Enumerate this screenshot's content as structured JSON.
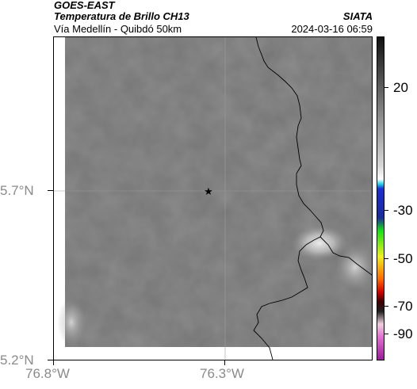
{
  "header": {
    "satellite": "GOES-EAST",
    "product": "Temperatura de Brillo CH13",
    "region": "Vía Medellín - Quibdó 50km",
    "organization": "SIATA",
    "timestamp": "2024-03-16 06:59"
  },
  "map": {
    "lat_labels": [
      "5.7°N",
      "5.2°N"
    ],
    "lon_labels": [
      "76.8°W",
      "76.3°W"
    ],
    "marker": "star",
    "gridlines": true
  },
  "colorbar": {
    "labels": [
      "20",
      "-30",
      "-50",
      "-70",
      "-90"
    ],
    "stops": [
      {
        "pos": 0.0,
        "color": "#111111"
      },
      {
        "pos": 0.4,
        "color": "#d8d8d8"
      },
      {
        "pos": 0.44,
        "color": "#ffffff"
      },
      {
        "pos": 0.455,
        "color": "#2ad1e8"
      },
      {
        "pos": 0.47,
        "color": "#1c2fd0"
      },
      {
        "pos": 0.56,
        "color": "#1a2b9a"
      },
      {
        "pos": 0.6,
        "color": "#17e017"
      },
      {
        "pos": 0.68,
        "color": "#f0f020"
      },
      {
        "pos": 0.75,
        "color": "#ff6a00"
      },
      {
        "pos": 0.79,
        "color": "#d00000"
      },
      {
        "pos": 0.82,
        "color": "#400000"
      },
      {
        "pos": 0.85,
        "color": "#202020"
      },
      {
        "pos": 0.89,
        "color": "#f0d0e0"
      },
      {
        "pos": 0.93,
        "color": "#e070d0"
      },
      {
        "pos": 1.0,
        "color": "#9a1c9a"
      }
    ]
  }
}
